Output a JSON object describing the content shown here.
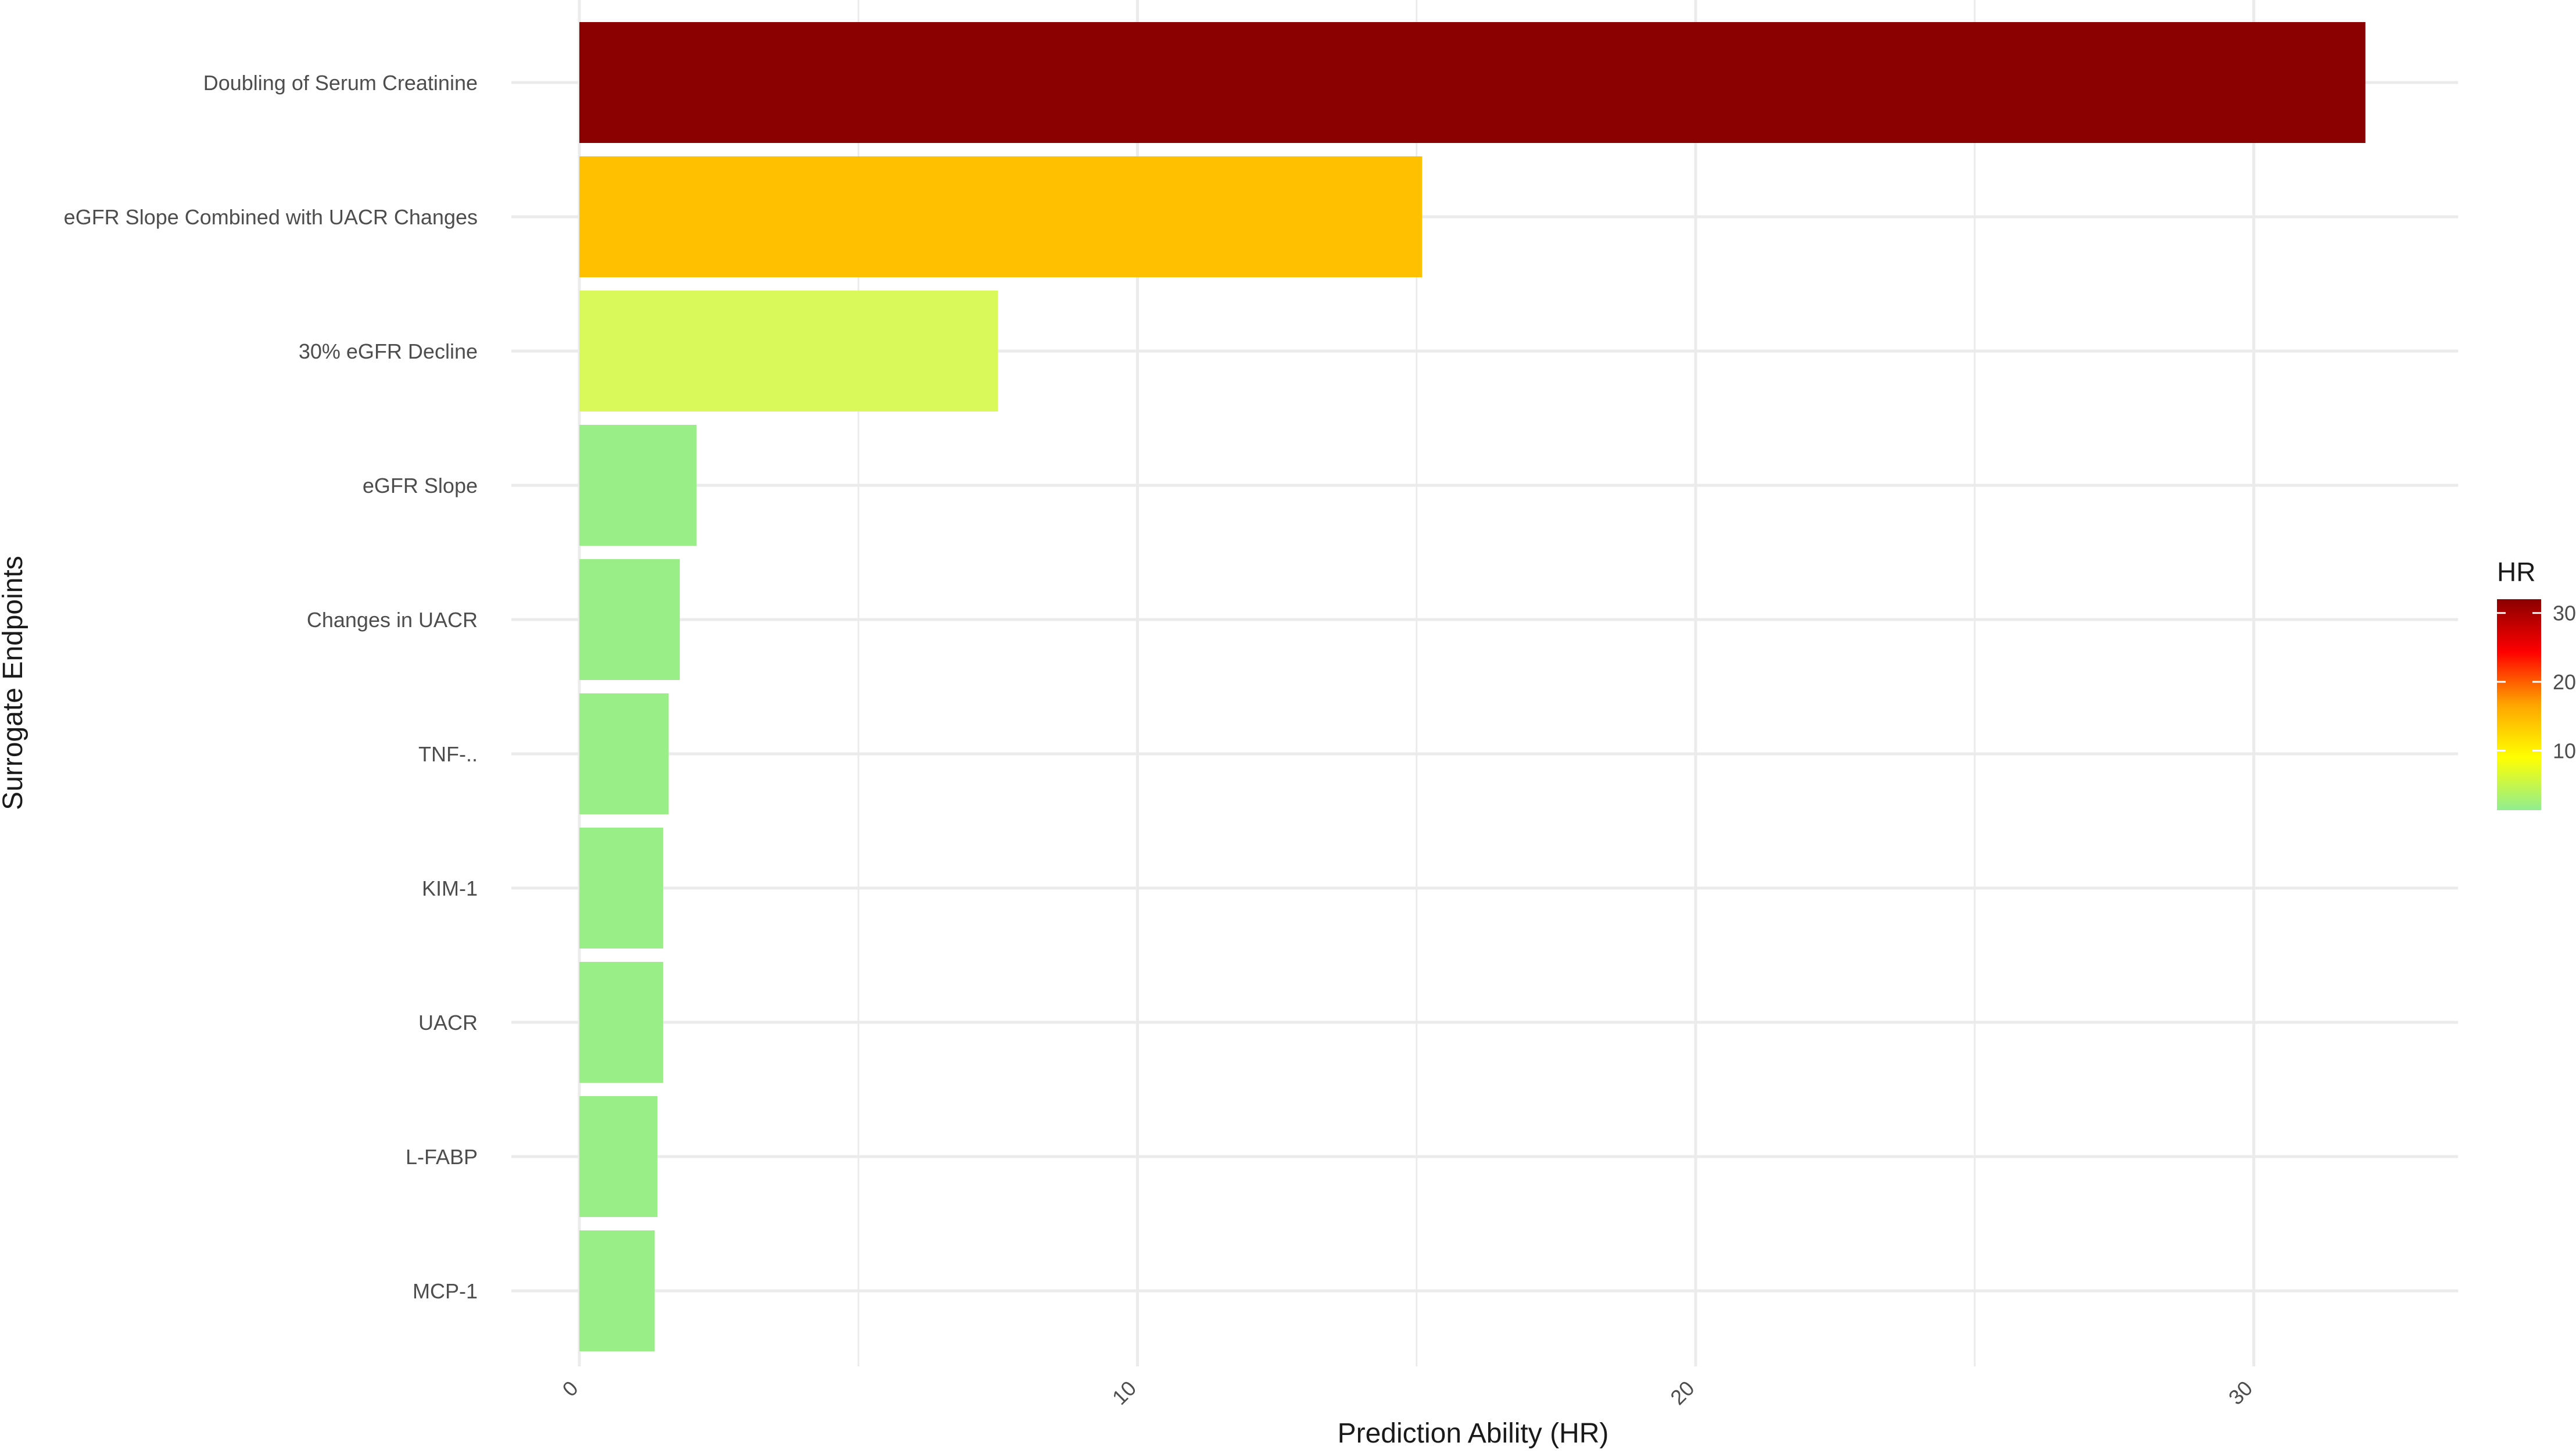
{
  "chart_data": {
    "type": "bar",
    "orientation": "horizontal",
    "xlabel": "Prediction Ability (HR)",
    "ylabel": "Surrogate Endpoints",
    "xlim": [
      -0.3,
      33.6
    ],
    "x_ticks": [
      0,
      10,
      20,
      30
    ],
    "categories": [
      "Doubling of Serum Creatinine",
      "eGFR Slope Combined with UACR Changes",
      "30% eGFR Decline",
      "eGFR Slope",
      "Changes in UACR",
      "TNF-..",
      "KIM-1",
      "UACR",
      "L-FABP",
      "MCP-1"
    ],
    "values": [
      32.0,
      15.1,
      7.5,
      2.1,
      1.8,
      1.6,
      1.5,
      1.5,
      1.4,
      1.35
    ],
    "bar_colors": [
      "#8b0000",
      "#ffc000",
      "#d9f85a",
      "#99ee88",
      "#99ee88",
      "#99ee88",
      "#99ee88",
      "#99ee88",
      "#99ee88",
      "#99ee88"
    ],
    "grid": true,
    "legend": {
      "title": "HR",
      "type": "colorbar",
      "placement": "right",
      "range": [
        1.35,
        32.0
      ],
      "ticks": [
        10,
        20,
        30
      ],
      "colors": [
        "#90ee90",
        "#ffff00",
        "#ffa500",
        "#ff0000",
        "#8b0000"
      ]
    }
  }
}
